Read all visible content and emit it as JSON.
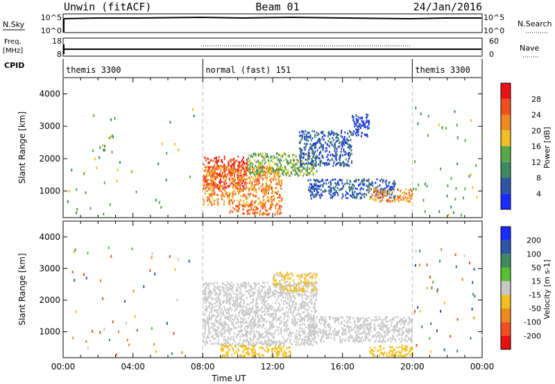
{
  "header": {
    "station": "Unwin (fitACF)",
    "beam": "Beam 01",
    "date": "24/Jan/2016"
  },
  "strips": {
    "nsky_label": "N.Sky",
    "nsky_ticks": [
      "10^5",
      "10^0"
    ],
    "nsearch_label": "N.Search",
    "freq_label": "Freq.",
    "freq_unit": "[MHz]",
    "freq_ticks": [
      "18",
      "8"
    ],
    "nave_ticks": [
      "60",
      "0"
    ],
    "nave_label": "Nave",
    "cpid_label": "CPID",
    "cpid_segments": [
      {
        "label": "themis 3300",
        "start_hour": 0,
        "end_hour": 8
      },
      {
        "label": "normal (fast) 151",
        "start_hour": 8,
        "end_hour": 20
      },
      {
        "label": "themis 3300",
        "start_hour": 20,
        "end_hour": 24
      }
    ]
  },
  "chart_data": [
    {
      "type": "heatmap",
      "title": "",
      "xlabel": "Time UT",
      "ylabel": "Slant Range [km]",
      "x_ticks": [
        "00:00",
        "04:00",
        "08:00",
        "12:00",
        "16:00",
        "20:00",
        "00:00"
      ],
      "y_ticks": [
        1000,
        2000,
        3000,
        4000
      ],
      "xlim_hours": [
        0,
        24
      ],
      "ylim_km": [
        180,
        4500
      ],
      "colorbar": {
        "label": "Power [dB]",
        "ticks": [
          "4",
          "8",
          "12",
          "16",
          "20",
          "24",
          "28"
        ],
        "colors": [
          "#1a2bff",
          "#2c55a8",
          "#3d8a5f",
          "#58a84a",
          "#f0c020",
          "#f08a20",
          "#f05020",
          "#e81010"
        ]
      },
      "regions": [
        {
          "hours": [
            8.0,
            10.5
          ],
          "km": [
            1100,
            2100
          ],
          "level": 28
        },
        {
          "hours": [
            8.0,
            12.5
          ],
          "km": [
            600,
            1800
          ],
          "level": 22
        },
        {
          "hours": [
            9.5,
            12.5
          ],
          "km": [
            300,
            600
          ],
          "level": 24
        },
        {
          "hours": [
            10.5,
            14.5
          ],
          "km": [
            1500,
            2200
          ],
          "level": 14
        },
        {
          "hours": [
            13.5,
            16.5
          ],
          "km": [
            1800,
            2900
          ],
          "level": 6
        },
        {
          "hours": [
            14.0,
            19.0
          ],
          "km": [
            800,
            1400
          ],
          "level": 6
        },
        {
          "hours": [
            17.5,
            20.0
          ],
          "km": [
            700,
            1100
          ],
          "level": 22
        },
        {
          "hours": [
            16.5,
            17.5
          ],
          "km": [
            2700,
            3400
          ],
          "level": 4
        }
      ]
    },
    {
      "type": "heatmap",
      "title": "",
      "xlabel": "Time UT",
      "ylabel": "Slant Range [km]",
      "x_ticks": [
        "00:00",
        "04:00",
        "08:00",
        "12:00",
        "16:00",
        "20:00",
        "00:00"
      ],
      "y_ticks": [
        1000,
        2000,
        3000,
        4000
      ],
      "xlim_hours": [
        0,
        24
      ],
      "ylim_km": [
        180,
        4500
      ],
      "colorbar": {
        "label": "Velocity [m s-1]",
        "ticks": [
          "200",
          "100",
          "50",
          "15",
          "-15",
          "-50",
          "-100",
          "-200"
        ],
        "colors": [
          "#1a2bff",
          "#2c55a8",
          "#3d8a5f",
          "#58c030",
          "#c8c8c8",
          "#f0c020",
          "#f08a20",
          "#f05020",
          "#e81010"
        ]
      },
      "regions": [
        {
          "hours": [
            8.0,
            14.5
          ],
          "km": [
            600,
            2600
          ],
          "level": 0
        },
        {
          "hours": [
            14.0,
            20.0
          ],
          "km": [
            700,
            1500
          ],
          "level": 0
        },
        {
          "hours": [
            9.0,
            13.0
          ],
          "km": [
            250,
            600
          ],
          "level": -40
        },
        {
          "hours": [
            17.5,
            20.0
          ],
          "km": [
            250,
            600
          ],
          "level": -40
        },
        {
          "hours": [
            12.0,
            14.5
          ],
          "km": [
            2300,
            2900
          ],
          "level": -20
        }
      ]
    }
  ]
}
